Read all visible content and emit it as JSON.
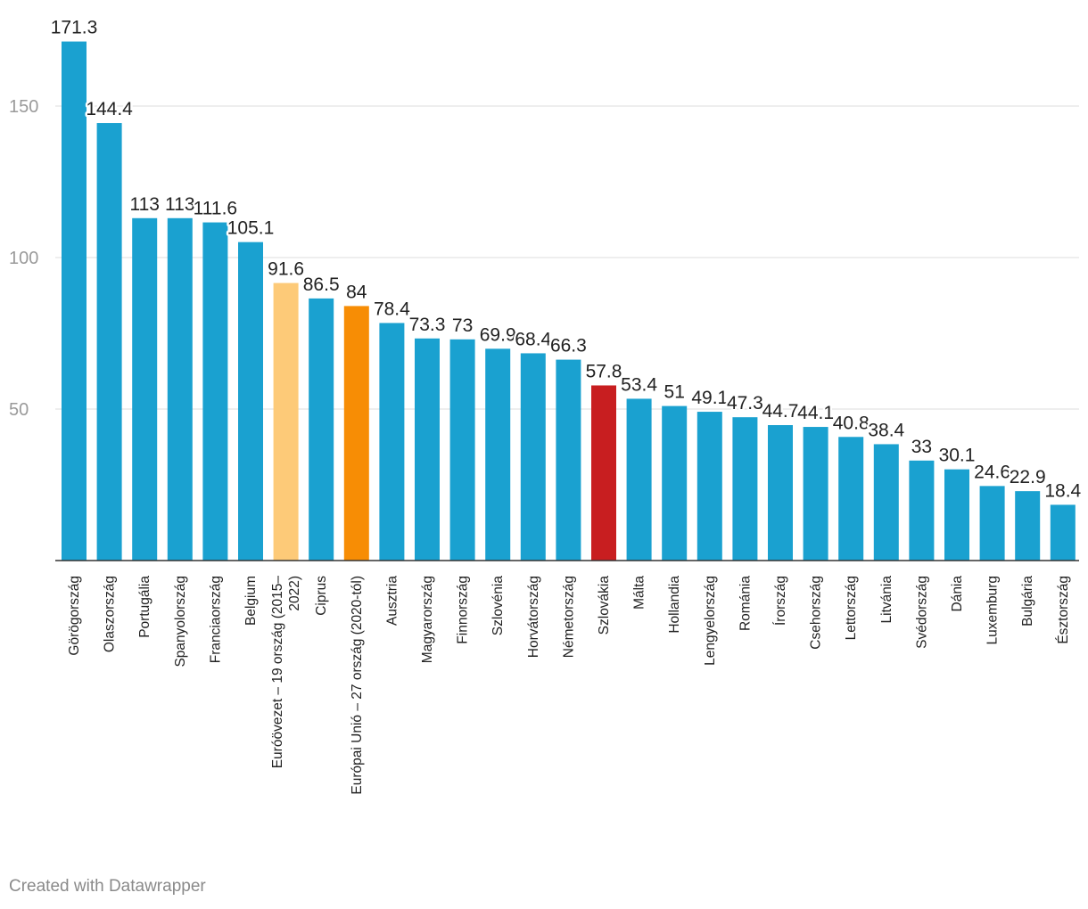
{
  "chart_data": {
    "type": "bar",
    "title": "",
    "xlabel": "",
    "ylabel": "",
    "ylim": [
      0,
      180
    ],
    "yticks": [
      50,
      100,
      150
    ],
    "grid": true,
    "categories": [
      "Görögország",
      "Olaszország",
      "Portugália",
      "Spanyolország",
      "Franciaország",
      "Belgium",
      "Euróövezet – 19 ország (2015–2022)",
      "Ciprus",
      "Európai Unió – 27 ország (2020-tól)",
      "Ausztria",
      "Magyarország",
      "Finnország",
      "Szlovénia",
      "Horvátország",
      "Németország",
      "Szlovákia",
      "Málta",
      "Hollandia",
      "Lengyelország",
      "Románia",
      "Írország",
      "Csehország",
      "Lettország",
      "Litvánia",
      "Svédország",
      "Dánia",
      "Luxemburg",
      "Bulgária",
      "Észtország"
    ],
    "category_lines": [
      [
        "Görögország"
      ],
      [
        "Olaszország"
      ],
      [
        "Portugália"
      ],
      [
        "Spanyolország"
      ],
      [
        "Franciaország"
      ],
      [
        "Belgium"
      ],
      [
        "Euróövezet – 19 ország (2015–",
        "2022)"
      ],
      [
        "Ciprus"
      ],
      [
        "Európai Unió – 27 ország (2020-tól)"
      ],
      [
        "Ausztria"
      ],
      [
        "Magyarország"
      ],
      [
        "Finnország"
      ],
      [
        "Szlovénia"
      ],
      [
        "Horvátország"
      ],
      [
        "Németország"
      ],
      [
        "Szlovákia"
      ],
      [
        "Málta"
      ],
      [
        "Hollandia"
      ],
      [
        "Lengyelország"
      ],
      [
        "Románia"
      ],
      [
        "Írország"
      ],
      [
        "Csehország"
      ],
      [
        "Lettország"
      ],
      [
        "Litvánia"
      ],
      [
        "Svédország"
      ],
      [
        "Dánia"
      ],
      [
        "Luxemburg"
      ],
      [
        "Bulgária"
      ],
      [
        "Észtország"
      ]
    ],
    "values": [
      171.3,
      144.4,
      113,
      113,
      111.6,
      105.1,
      91.6,
      86.5,
      84,
      78.4,
      73.3,
      73,
      69.9,
      68.4,
      66.3,
      57.8,
      53.4,
      51,
      49.1,
      47.3,
      44.7,
      44.1,
      40.8,
      38.4,
      33,
      30.1,
      24.6,
      22.9,
      18.4
    ],
    "value_labels": [
      "171.3",
      "144.4",
      "113",
      "113",
      "111.6",
      "105.1",
      "91.6",
      "86.5",
      "84",
      "78.4",
      "73.3",
      "73",
      "69.9",
      "68.4",
      "66.3",
      "57.8",
      "53.4",
      "51",
      "49.1",
      "47.3",
      "44.7",
      "44.1",
      "40.8",
      "38.4",
      "33",
      "30.1",
      "24.6",
      "22.9",
      "18.4"
    ],
    "colors": {
      "default": "#1aa1d0",
      "euro_area": "#fdca78",
      "eu27": "#f78d05",
      "highlight": "#c81e20"
    },
    "bar_colors": [
      "#1aa1d0",
      "#1aa1d0",
      "#1aa1d0",
      "#1aa1d0",
      "#1aa1d0",
      "#1aa1d0",
      "#fdca78",
      "#1aa1d0",
      "#f78d05",
      "#1aa1d0",
      "#1aa1d0",
      "#1aa1d0",
      "#1aa1d0",
      "#1aa1d0",
      "#1aa1d0",
      "#c81e20",
      "#1aa1d0",
      "#1aa1d0",
      "#1aa1d0",
      "#1aa1d0",
      "#1aa1d0",
      "#1aa1d0",
      "#1aa1d0",
      "#1aa1d0",
      "#1aa1d0",
      "#1aa1d0",
      "#1aa1d0",
      "#1aa1d0",
      "#1aa1d0"
    ]
  },
  "footer": {
    "credit": "Created with Datawrapper"
  }
}
